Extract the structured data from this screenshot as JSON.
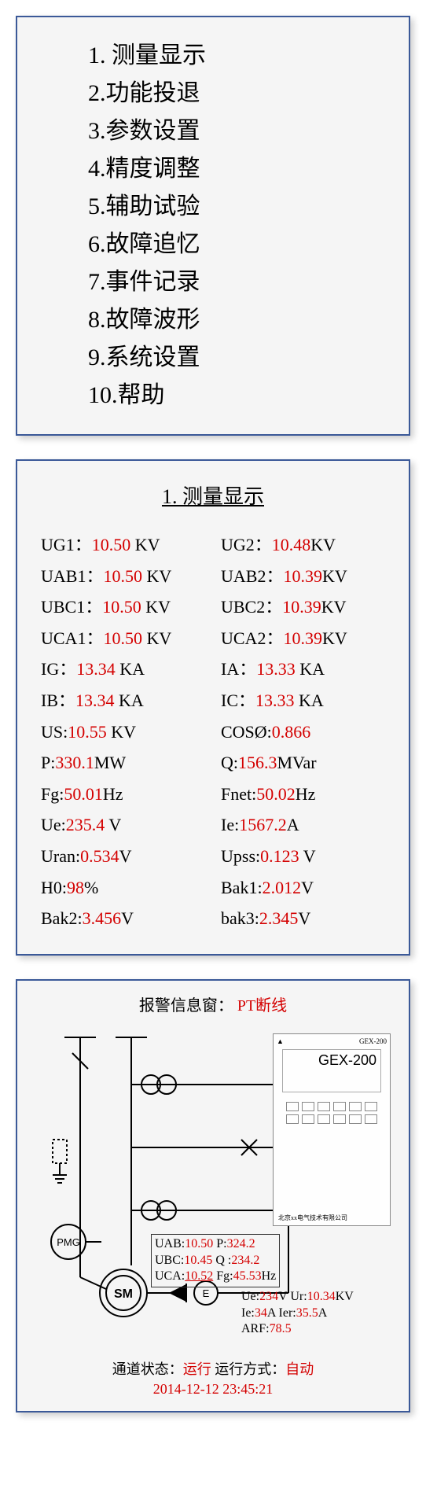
{
  "menu": {
    "items": [
      "1. 测量显示",
      "2.功能投退",
      "3.参数设置",
      "4.精度调整",
      "5.辅助试验",
      "6.故障追忆",
      "7.事件记录",
      "8.故障波形",
      "9.系统设置",
      "10.帮助"
    ]
  },
  "panel2": {
    "title": "1. 测量显示",
    "rows": [
      [
        {
          "l": "UG1：",
          "v": "10.50",
          "u": " KV"
        },
        {
          "l": "UG2：",
          "v": "10.48",
          "u": "KV"
        }
      ],
      [
        {
          "l": "UAB1：",
          "v": "10.50",
          "u": " KV"
        },
        {
          "l": "UAB2：",
          "v": "10.39",
          "u": "KV"
        }
      ],
      [
        {
          "l": "UBC1：",
          "v": "10.50",
          "u": " KV"
        },
        {
          "l": "UBC2：",
          "v": "10.39",
          "u": "KV"
        }
      ],
      [
        {
          "l": "UCA1：",
          "v": "10.50",
          "u": " KV"
        },
        {
          "l": "UCA2：",
          "v": "10.39",
          "u": "KV"
        }
      ],
      [
        {
          "l": "IG：",
          "v": "13.34",
          "u": " KA"
        },
        {
          "l": "IA：",
          "v": "13.33",
          "u": " KA"
        }
      ],
      [
        {
          "l": "IB：",
          "v": "13.34",
          "u": " KA"
        },
        {
          "l": "IC：",
          "v": "13.33",
          "u": " KA"
        }
      ],
      [
        {
          "l": "US:",
          "v": "10.55",
          "u": " KV"
        },
        {
          "l": "COSØ:",
          "v": "0.866",
          "u": ""
        }
      ],
      [
        {
          "l": "P:",
          "v": "330.1",
          "u": "MW"
        },
        {
          "l": "Q:",
          "v": "156.3",
          "u": "MVar"
        }
      ],
      [
        {
          "l": "Fg:",
          "v": "50.01",
          "u": "Hz"
        },
        {
          "l": "Fnet:",
          "v": "50.02",
          "u": "Hz"
        }
      ],
      [
        {
          "l": "Ue:",
          "v": "235.4",
          "u": " V"
        },
        {
          "l": "Ie:",
          "v": "1567.2",
          "u": "A"
        }
      ],
      [
        {
          "l": "Uran:",
          "v": "0.534",
          "u": "V"
        },
        {
          "l": "Upss:",
          "v": "0.123",
          "u": " V"
        }
      ],
      [
        {
          "l": "H0:",
          "v": "98",
          "u": "%"
        },
        {
          "l": "Bak1:",
          "v": "2.012",
          "u": "V"
        }
      ],
      [
        {
          "l": "Bak2:",
          "v": "3.456",
          "u": "V"
        },
        {
          "l": "bak3:",
          "v": "2.345",
          "u": "V"
        }
      ]
    ]
  },
  "panel3": {
    "alarm_label": "报警信息窗：",
    "alarm_value": "PT断线",
    "device": {
      "model": "GEX-200",
      "brand_left": "▲",
      "brand_right": "GEX-200"
    },
    "diag1": {
      "uab_l": "UAB:",
      "uab_v": "10.50",
      "p_l": " P:",
      "p_v": "324.2",
      "ubc_l": "UBC:",
      "ubc_v": "10.45",
      "q_l": " Q :",
      "q_v": "234.2",
      "uca_l": "UCA:",
      "uca_v": "10.52",
      "fg_l": " Fg:",
      "fg_v": "45.53",
      "fg_u": "Hz"
    },
    "diag2": {
      "ue_l": "Ue:",
      "ue_v": "234",
      "ue_u": "V",
      "ur_l": "   Ur:",
      "ur_v": "10.34",
      "ur_u": "KV",
      "ie_l": "Ie:",
      "ie_v": "34",
      "ie_u": "A",
      "ier_l": "     Ier:",
      "ier_v": "35.5",
      "ier_u": "A",
      "arf_l": "ARF:",
      "arf_v": "78.5"
    },
    "status": {
      "ch_l": "通道状态：",
      "ch_v": "运行",
      "mode_l": " 运行方式：",
      "mode_v": "自动",
      "timestamp": "2014-12-12 23:45:21"
    },
    "svg": {
      "stroke": "#000",
      "stroke_width": 2,
      "pmg_label": "PMG",
      "sm_label": "SM",
      "e_label": "E"
    }
  },
  "colors": {
    "value_red": "#d40000"
  }
}
